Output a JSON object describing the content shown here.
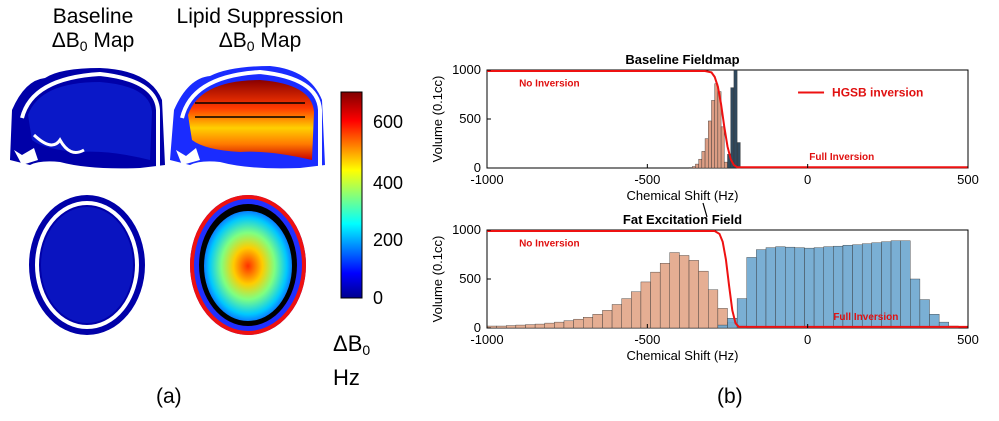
{
  "panel_a": {
    "label": "(a)",
    "col1_title_line1": "Baseline",
    "col1_title_line2": "ΔB",
    "col2_title_line1": "Lipid Suppression",
    "col2_title_line2": "ΔB",
    "title_sub": "0",
    "title_suffix": " Map",
    "colorbar": {
      "ticks": [
        "600",
        "400",
        "200",
        "0"
      ],
      "unit_line1": "ΔB",
      "unit_sub": "0",
      "unit_line2": "Hz",
      "colormap": "jet"
    }
  },
  "panel_b": {
    "label": "(b)"
  },
  "chart_data": [
    {
      "type": "bar",
      "title": "Baseline Fieldmap",
      "xlabel": "Chemical Shift (Hz)",
      "ylabel": "Volume (0.1cc)",
      "xlim": [
        -1000,
        500
      ],
      "ylim": [
        0,
        1000
      ],
      "xticks": [
        "-1000",
        "-500",
        "0",
        "500"
      ],
      "yticks": [
        "0",
        "500",
        "1000"
      ],
      "legend": {
        "entry": "HGSB inversion",
        "placement": "top-right"
      },
      "annotations": [
        "No Inversion",
        "Full Inversion"
      ],
      "colors": {
        "fat": "#d9957a",
        "water": "#1f3a4f",
        "curve": "#ee1111"
      },
      "series": [
        {
          "kind": "fat",
          "x": [
            -370,
            -360,
            -350,
            -340,
            -330,
            -320,
            -310,
            -300,
            -290,
            -280,
            -270,
            -260
          ],
          "values": [
            5,
            15,
            40,
            90,
            170,
            300,
            480,
            690,
            860,
            780,
            420,
            60
          ]
        },
        {
          "kind": "water",
          "x": [
            -250,
            -240,
            -230,
            -220
          ],
          "values": [
            140,
            820,
            1000,
            260
          ]
        }
      ],
      "curve": {
        "label": "HGSB inversion",
        "x": [
          -1000,
          -320,
          -300,
          -290,
          -280,
          -270,
          -260,
          -250,
          -240,
          -230,
          -220,
          500
        ],
        "y": [
          990,
          990,
          975,
          930,
          830,
          650,
          420,
          220,
          90,
          30,
          8,
          8
        ]
      }
    },
    {
      "type": "bar",
      "title": "Fat Excitation Field",
      "xlabel": "Chemical Shift (Hz)",
      "ylabel": "Volume (0.1cc)",
      "xlim": [
        -1000,
        500
      ],
      "ylim": [
        0,
        1000
      ],
      "xticks": [
        "-1000",
        "-500",
        "0",
        "500"
      ],
      "yticks": [
        "0",
        "500",
        "1000"
      ],
      "annotations": [
        "No Inversion",
        "Full Inversion"
      ],
      "colors": {
        "fat": "#e3a78a",
        "water": "#6fa8d0",
        "curve": "#ee1111"
      },
      "series": [
        {
          "kind": "fat",
          "x": [
            -1000,
            -970,
            -940,
            -910,
            -880,
            -850,
            -820,
            -790,
            -760,
            -730,
            -700,
            -670,
            -640,
            -610,
            -580,
            -550,
            -520,
            -490,
            -460,
            -430,
            -400,
            -370,
            -340,
            -310,
            -280,
            -250,
            -220
          ],
          "values": [
            20,
            20,
            25,
            30,
            35,
            40,
            50,
            60,
            75,
            90,
            110,
            140,
            180,
            240,
            300,
            370,
            470,
            570,
            660,
            770,
            740,
            690,
            580,
            390,
            200,
            60,
            30
          ]
        },
        {
          "kind": "water",
          "x": [
            -280,
            -250,
            -220,
            -190,
            -160,
            -130,
            -100,
            -70,
            -40,
            -10,
            20,
            50,
            80,
            110,
            140,
            170,
            200,
            230,
            260,
            290,
            320,
            350,
            380,
            410,
            440
          ],
          "values": [
            30,
            100,
            300,
            720,
            800,
            820,
            830,
            825,
            820,
            815,
            820,
            830,
            835,
            845,
            850,
            860,
            870,
            880,
            890,
            890,
            500,
            290,
            140,
            60,
            20
          ]
        }
      ],
      "curve": {
        "label": "HGSB inversion",
        "x": [
          -1000,
          -290,
          -275,
          -265,
          -255,
          -245,
          -235,
          -225,
          -215,
          500
        ],
        "y": [
          990,
          990,
          960,
          880,
          700,
          430,
          180,
          50,
          12,
          12
        ]
      }
    }
  ]
}
